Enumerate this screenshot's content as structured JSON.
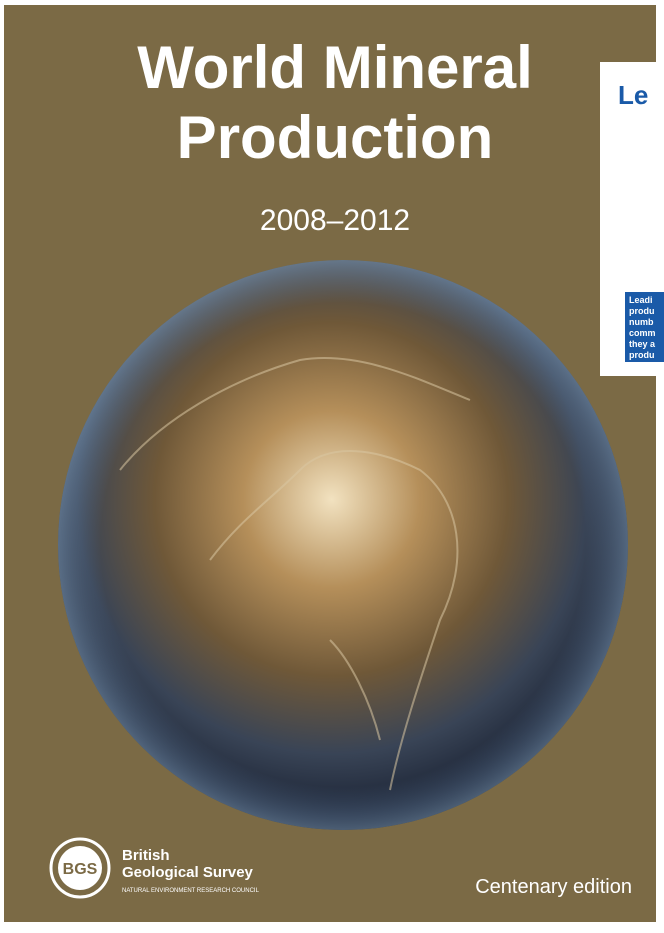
{
  "cover": {
    "title_line_1": "World Mineral",
    "title_line_2": "Production",
    "years": "2008–2012",
    "publisher": {
      "line_1": "British",
      "line_2": "Geological Survey",
      "line_3": "NATURAL ENVIRONMENT RESEARCH COUNCIL",
      "logo": "BGS"
    },
    "edition": "Centenary edition"
  },
  "inset_page": {
    "title": "Le",
    "box_lines": [
      "Leadi",
      "produ",
      "numb",
      "comm",
      "they a",
      "produ"
    ]
  }
}
